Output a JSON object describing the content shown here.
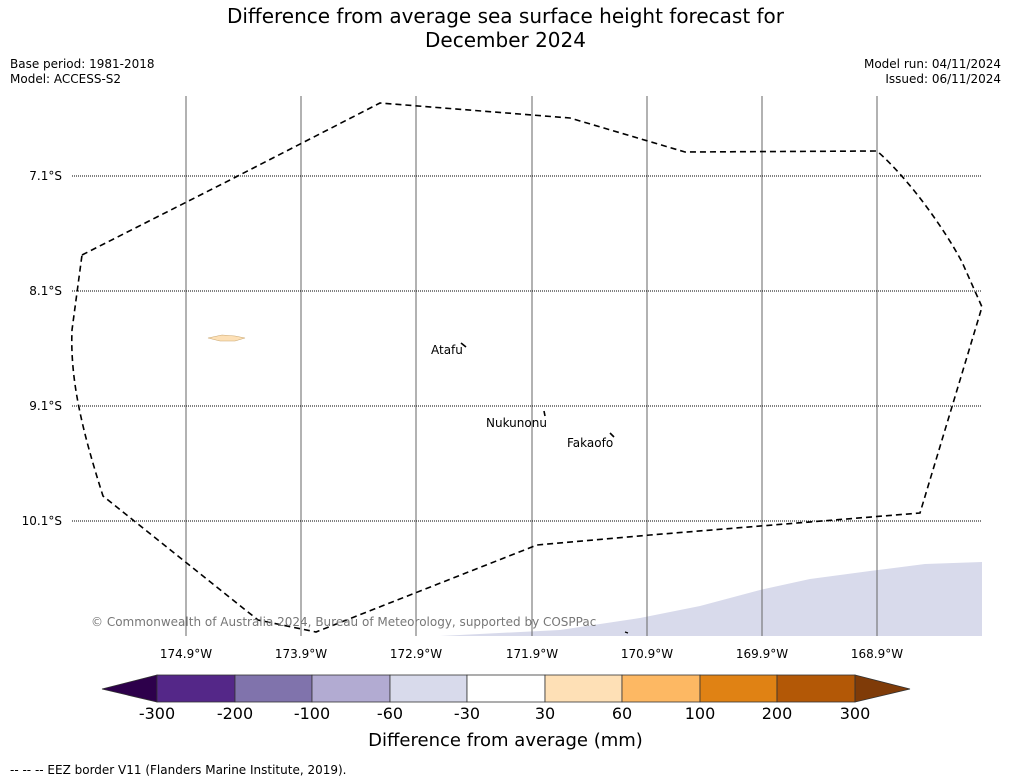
{
  "title_line1": "Difference from average sea surface height forecast for",
  "title_line2": "December 2024",
  "base_period": "Base period: 1981-2018",
  "model": "Model: ACCESS-S2",
  "model_run": "Model run: 04/11/2024",
  "issued": "Issued: 06/11/2024",
  "latitude_labels": [
    "7.1°S",
    "8.1°S",
    "9.1°S",
    "10.1°S"
  ],
  "longitude_labels": [
    "174.9°W",
    "173.9°W",
    "172.9°W",
    "171.9°W",
    "170.9°W",
    "169.9°W",
    "168.9°W"
  ],
  "places": [
    {
      "name": "Atafu"
    },
    {
      "name": "Nukunonu"
    },
    {
      "name": "Fakaofo"
    }
  ],
  "copyright": "© Commonwealth of Australia 2024, Bureau of Meteorology, supported by COSPPac",
  "colorbar": {
    "title": "Difference from average (mm)",
    "ticks": [
      "-300",
      "-200",
      "-100",
      "-60",
      "-30",
      "30",
      "60",
      "100",
      "200",
      "300"
    ],
    "colors": [
      "#2d004b",
      "#542788",
      "#8073ac",
      "#b2abd2",
      "#d8daeb",
      "#ffffff",
      "#fee0b6",
      "#fdb863",
      "#e08214",
      "#b35806",
      "#7f3b08"
    ]
  },
  "footnote": "--  --  -- EEZ border V11 (Flanders Marine Institute, 2019).",
  "colors": {
    "eez_border": "#000000",
    "grid": "#555555",
    "land": "#fde0b6",
    "sea_anomaly": "#d8daeb"
  }
}
